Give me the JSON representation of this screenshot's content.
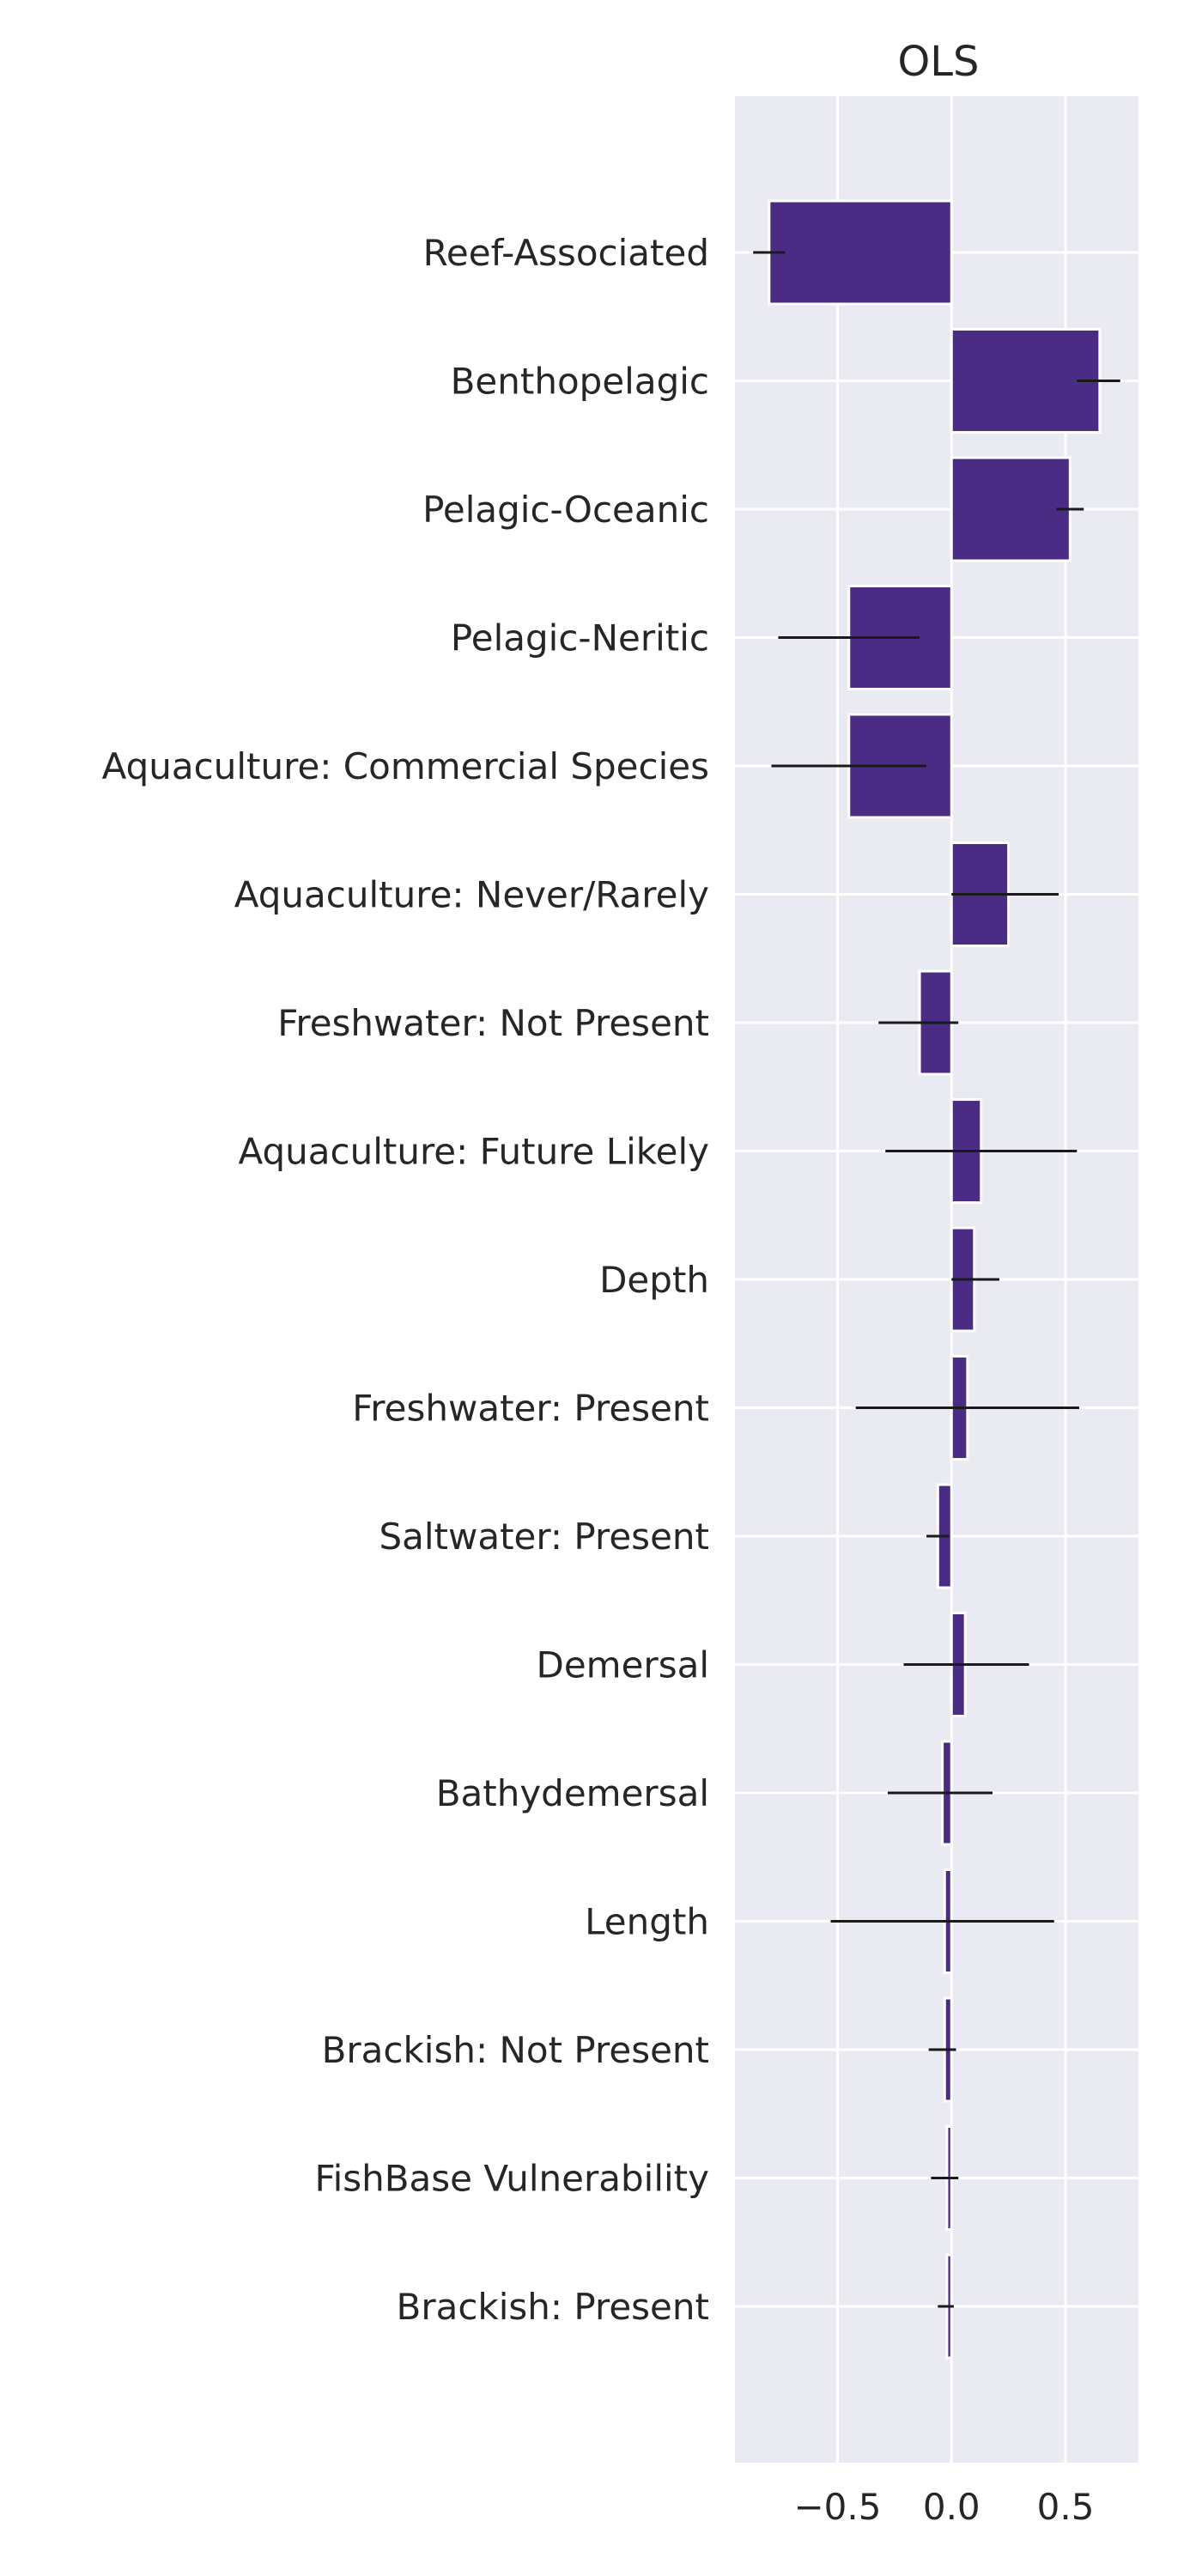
{
  "chart_data": {
    "type": "bar",
    "orientation": "horizontal",
    "title": "OLS",
    "xlabel": "",
    "ylabel": "",
    "xlim": [
      -0.95,
      0.82
    ],
    "xticks": [
      -0.5,
      0.0,
      0.5
    ],
    "xtick_labels": [
      "−0.5",
      "0.0",
      "0.5"
    ],
    "grid": true,
    "bar_color": "#4b2c85",
    "error_color": "#1a1a1a",
    "background": "#eaeaf2",
    "categories": [
      "Reef-Associated",
      "Benthopelagic",
      "Pelagic-Oceanic",
      "Pelagic-Neritic",
      "Aquaculture: Commercial Species",
      "Aquaculture: Never/Rarely",
      "Freshwater: Not Present",
      "Aquaculture: Future Likely",
      "Depth",
      "Freshwater: Present",
      "Saltwater: Present",
      "Demersal",
      "Bathydemersal",
      "Length",
      "Brackish: Not Present",
      "FishBase Vulnerability",
      "Brackish: Present"
    ],
    "values": [
      -0.8,
      0.65,
      0.52,
      -0.45,
      -0.45,
      0.25,
      -0.14,
      0.13,
      0.1,
      0.07,
      -0.06,
      0.06,
      -0.04,
      -0.03,
      -0.03,
      -0.02,
      -0.02
    ],
    "error_low": [
      -0.87,
      0.55,
      0.46,
      -0.76,
      -0.79,
      0.0,
      -0.32,
      -0.29,
      0.0,
      -0.42,
      -0.11,
      -0.21,
      -0.28,
      -0.53,
      -0.1,
      -0.09,
      -0.06
    ],
    "error_high": [
      -0.73,
      0.74,
      0.58,
      -0.14,
      -0.11,
      0.47,
      0.03,
      0.55,
      0.21,
      0.56,
      -0.01,
      0.34,
      0.18,
      0.45,
      0.02,
      0.03,
      0.01
    ]
  }
}
